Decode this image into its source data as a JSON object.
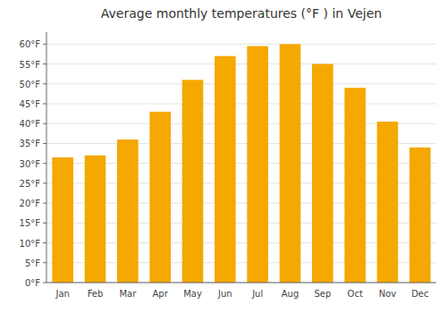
{
  "chart_data": {
    "type": "bar",
    "title": "Average monthly temperatures (°F ) in Vejen",
    "categories": [
      "Jan",
      "Feb",
      "Mar",
      "Apr",
      "May",
      "Jun",
      "Jul",
      "Aug",
      "Sep",
      "Oct",
      "Nov",
      "Dec"
    ],
    "values": [
      31.5,
      32.0,
      36.0,
      43.0,
      51.0,
      57.0,
      59.5,
      60.0,
      55.0,
      49.0,
      40.5,
      34.0
    ],
    "color": "#F5A800",
    "ylim": [
      0,
      63
    ],
    "yticks": [
      {
        "value": 0,
        "label": "0°F"
      },
      {
        "value": 5,
        "label": "5°F"
      },
      {
        "value": 10,
        "label": "10°F"
      },
      {
        "value": 15,
        "label": "15°F"
      },
      {
        "value": 20,
        "label": "20°F"
      },
      {
        "value": 25,
        "label": "25°F"
      },
      {
        "value": 30,
        "label": "30°F"
      },
      {
        "value": 35,
        "label": "35°F"
      },
      {
        "value": 40,
        "label": "40°F"
      },
      {
        "value": 45,
        "label": "45°F"
      },
      {
        "value": 50,
        "label": "50°F"
      },
      {
        "value": 55,
        "label": "55°F"
      },
      {
        "value": 60,
        "label": "60°F"
      }
    ],
    "grid": true
  }
}
